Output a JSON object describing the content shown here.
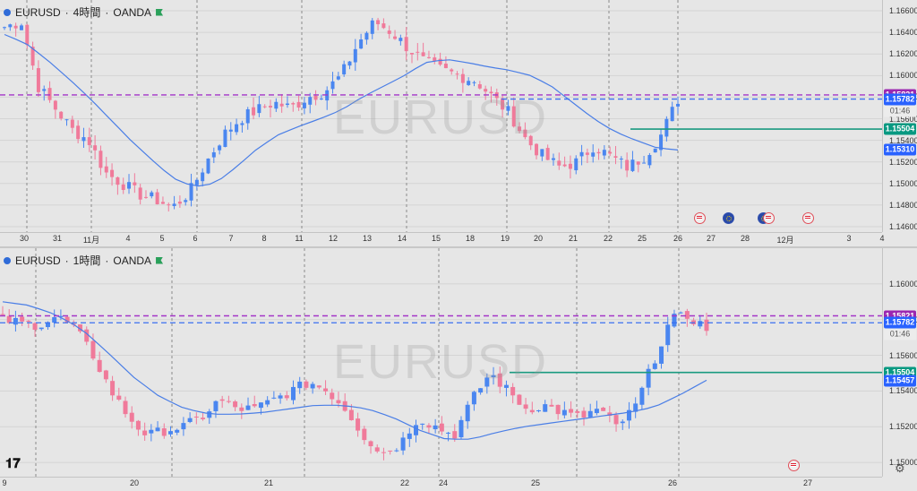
{
  "top_chart": {
    "legend": {
      "symbol": "EURUSD",
      "interval": "4時間",
      "broker": "OANDA"
    },
    "watermark": "EURUSD",
    "price_ticks": [
      "1.16600",
      "1.16400",
      "1.16200",
      "1.16000",
      "1.15800",
      "1.15600",
      "1.15400",
      "1.15200",
      "1.15000",
      "1.14800",
      "1.14600"
    ],
    "badges": [
      {
        "value": "1.15821",
        "color": "#9c27b0"
      },
      {
        "value": "1.15782",
        "color": "#2962ff"
      },
      {
        "value": "01:46",
        "kind": "time"
      },
      {
        "value": "1.15504",
        "color": "#089981"
      },
      {
        "value": "1.15310",
        "color": "#2962ff"
      }
    ],
    "x_labels": [
      "30",
      "31",
      "11月",
      "4",
      "5",
      "6",
      "7",
      "8",
      "11",
      "12",
      "13",
      "14",
      "15",
      "18",
      "19",
      "20",
      "21",
      "22",
      "25",
      "26",
      "27",
      "28",
      "12月",
      "3",
      "4"
    ]
  },
  "bottom_chart": {
    "legend": {
      "symbol": "EURUSD",
      "interval": "1時間",
      "broker": "OANDA"
    },
    "watermark": "EURUSD",
    "price_ticks": [
      "1.16000",
      "1.15800",
      "1.15600",
      "1.15400",
      "1.15200",
      "1.15000"
    ],
    "badges": [
      {
        "value": "1.15821",
        "color": "#9c27b0"
      },
      {
        "value": "1.15782",
        "color": "#2962ff"
      },
      {
        "value": "01:46",
        "kind": "time"
      },
      {
        "value": "1.15504",
        "color": "#089981"
      },
      {
        "value": "1.15457",
        "color": "#2962ff"
      }
    ],
    "x_labels": [
      "9",
      "20",
      "21",
      "22",
      "24",
      "25",
      "26",
      "27"
    ]
  },
  "chart_data": [
    {
      "type": "candlestick",
      "title": "EURUSD · 4時間 · OANDA",
      "ylim": [
        1.1455,
        1.167
      ],
      "levels": {
        "purple_dashed": 1.15821,
        "blue_dashed": 1.15782,
        "green_line": 1.15504,
        "ma_last": 1.1531,
        "current": 1.15782
      },
      "close_path": [
        1.1645,
        1.165,
        1.159,
        1.157,
        1.155,
        1.154,
        1.151,
        1.15,
        1.149,
        1.1485,
        1.1478,
        1.1492,
        1.152,
        1.1545,
        1.156,
        1.1568,
        1.1575,
        1.157,
        1.158,
        1.1585,
        1.16,
        1.163,
        1.165,
        1.164,
        1.1625,
        1.1612,
        1.1605,
        1.16,
        1.1595,
        1.158,
        1.1565,
        1.154,
        1.1525,
        1.1515,
        1.152,
        1.1535,
        1.1525,
        1.1515,
        1.1525,
        1.1545,
        1.1578
      ],
      "moving_average_path": [
        1.1638,
        1.163,
        1.1615,
        1.1598,
        1.158,
        1.156,
        1.154,
        1.1522,
        1.1505,
        1.1497,
        1.15,
        1.1515,
        1.1532,
        1.1545,
        1.1553,
        1.156,
        1.1568,
        1.158,
        1.159,
        1.16,
        1.1612,
        1.1615,
        1.1612,
        1.1608,
        1.1605,
        1.16,
        1.159,
        1.1575,
        1.156,
        1.1548,
        1.154,
        1.1533,
        1.1531
      ]
    },
    {
      "type": "candlestick",
      "title": "EURUSD · 1時間 · OANDA",
      "ylim": [
        1.1492,
        1.162
      ],
      "levels": {
        "purple_dashed": 1.15821,
        "blue_dashed": 1.15782,
        "green_line": 1.15504,
        "ma_last": 1.15457,
        "current": 1.15782
      },
      "close_path": [
        1.158,
        1.1578,
        1.1577,
        1.1582,
        1.1575,
        1.156,
        1.154,
        1.1525,
        1.1515,
        1.1518,
        1.152,
        1.1525,
        1.1535,
        1.153,
        1.153,
        1.1535,
        1.154,
        1.1545,
        1.154,
        1.153,
        1.1515,
        1.1505,
        1.151,
        1.1525,
        1.152,
        1.1515,
        1.1535,
        1.155,
        1.154,
        1.153,
        1.1532,
        1.1528,
        1.1525,
        1.153,
        1.152,
        1.153,
        1.1555,
        1.158,
        1.1582,
        1.1575
      ],
      "moving_average_path": [
        1.159,
        1.1588,
        1.1583,
        1.1575,
        1.1562,
        1.1548,
        1.1537,
        1.153,
        1.1527,
        1.1527,
        1.1528,
        1.153,
        1.1532,
        1.1532,
        1.153,
        1.1525,
        1.1518,
        1.1513,
        1.1513,
        1.1517,
        1.152,
        1.1522,
        1.1524,
        1.1526,
        1.1528,
        1.1531,
        1.1538,
        1.1546
      ]
    }
  ]
}
